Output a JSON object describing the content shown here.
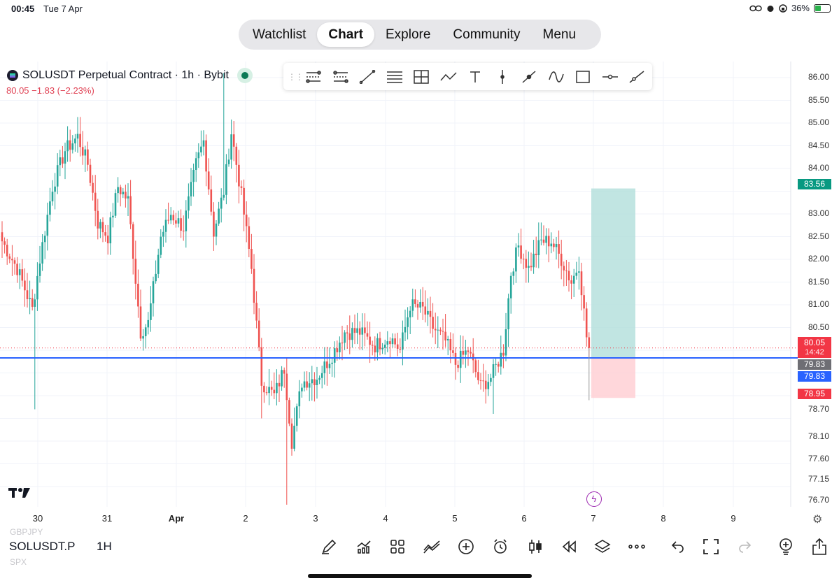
{
  "status": {
    "time": "00:45",
    "date": "Tue 7 Apr",
    "battery": "36%"
  },
  "nav": {
    "tabs": [
      "Watchlist",
      "Chart",
      "Explore",
      "Community",
      "Menu"
    ],
    "active": "Chart"
  },
  "symbol": {
    "title": "SOLUSDT Perpetual Contract · 1h · Bybit",
    "last": "80.05",
    "change": "−1.83 (−2.23%)"
  },
  "toolbar": {
    "tools": [
      "fib-retracement-icon",
      "parallel-channel-icon",
      "trend-line-icon",
      "horizontal-lines-icon",
      "crosshair-box-icon",
      "path-icon",
      "text-icon",
      "vertical-line-icon",
      "arrow-marker-icon",
      "curve-icon",
      "rectangle-icon",
      "horizontal-ray-icon",
      "ray-icon"
    ]
  },
  "price_axis": [
    "86.00",
    "85.50",
    "85.00",
    "84.50",
    "84.00",
    "83.00",
    "82.50",
    "82.00",
    "81.50",
    "81.00",
    "80.50",
    "78.70",
    "78.10",
    "77.60",
    "77.15",
    "76.70"
  ],
  "price_tags": {
    "target": "83.56",
    "current": "80.05",
    "countdown": "14:42",
    "entry_gray": "79.83",
    "entry_blue": "79.83",
    "stop": "78.95"
  },
  "x_axis": [
    "30",
    "31",
    "Apr",
    "2",
    "3",
    "4",
    "5",
    "6",
    "7",
    "8",
    "9"
  ],
  "bottom": {
    "ghost_top": "GBPJPY",
    "ghost_bottom": "SPX",
    "symbol": "SOLUSDT.P",
    "timeframe": "1H",
    "icons": [
      "draw-icon",
      "indicators-icon",
      "layouts-icon",
      "compare-icon",
      "add-icon",
      "alert-icon",
      "candles-icon",
      "replay-icon",
      "layers-icon",
      "more-icon",
      "undo-icon",
      "fullscreen-icon",
      "redo-icon",
      "ideas-icon",
      "share-icon"
    ]
  },
  "colors": {
    "up": "#26a69a",
    "down": "#ef5350",
    "entry_line": "#2962ff",
    "target_zone": "#b2dfdb",
    "stop_zone": "#ffcdd2"
  },
  "chart_data": {
    "type": "candlestick",
    "title": "SOLUSDT Perpetual Contract · 1h · Bybit",
    "ylim": [
      76.55,
      86.15
    ],
    "x": [
      "30",
      "31",
      "Apr",
      "2",
      "3",
      "4",
      "5",
      "6",
      "7",
      "8",
      "9"
    ],
    "key_prices": {
      "last": 80.05,
      "entry": 79.83,
      "target": 83.56,
      "stop": 78.95
    },
    "anchors": [
      {
        "t": 0,
        "p": 82.4
      },
      {
        "t": 6,
        "p": 81.8
      },
      {
        "t": 10,
        "p": 81.2
      },
      {
        "t": 12,
        "p": 80.9
      },
      {
        "t": 15,
        "p": 82.0
      },
      {
        "t": 20,
        "p": 83.6
      },
      {
        "t": 25,
        "p": 84.4
      },
      {
        "t": 30,
        "p": 84.7
      },
      {
        "t": 34,
        "p": 84.1
      },
      {
        "t": 38,
        "p": 82.8
      },
      {
        "t": 42,
        "p": 82.5
      },
      {
        "t": 46,
        "p": 83.6
      },
      {
        "t": 50,
        "p": 83.3
      },
      {
        "t": 55,
        "p": 80.4
      },
      {
        "t": 58,
        "p": 80.6
      },
      {
        "t": 63,
        "p": 82.5
      },
      {
        "t": 67,
        "p": 83.0
      },
      {
        "t": 72,
        "p": 82.7
      },
      {
        "t": 77,
        "p": 84.1
      },
      {
        "t": 80,
        "p": 84.6
      },
      {
        "t": 84,
        "p": 82.6
      },
      {
        "t": 88,
        "p": 83.5
      },
      {
        "t": 91,
        "p": 84.8
      },
      {
        "t": 95,
        "p": 83.4
      },
      {
        "t": 99,
        "p": 81.8
      },
      {
        "t": 103,
        "p": 79.3
      },
      {
        "t": 108,
        "p": 79.0
      },
      {
        "t": 112,
        "p": 79.6
      },
      {
        "t": 115,
        "p": 78.0
      },
      {
        "t": 119,
        "p": 79.3
      },
      {
        "t": 125,
        "p": 79.4
      },
      {
        "t": 131,
        "p": 79.9
      },
      {
        "t": 136,
        "p": 80.4
      },
      {
        "t": 142,
        "p": 80.4
      },
      {
        "t": 148,
        "p": 80.1
      },
      {
        "t": 154,
        "p": 80.3
      },
      {
        "t": 158,
        "p": 80.0
      },
      {
        "t": 162,
        "p": 81.0
      },
      {
        "t": 167,
        "p": 80.9
      },
      {
        "t": 171,
        "p": 80.5
      },
      {
        "t": 176,
        "p": 80.2
      },
      {
        "t": 180,
        "p": 79.7
      },
      {
        "t": 185,
        "p": 80.0
      },
      {
        "t": 190,
        "p": 79.2
      },
      {
        "t": 194,
        "p": 79.4
      },
      {
        "t": 199,
        "p": 80.0
      },
      {
        "t": 202,
        "p": 81.7
      },
      {
        "t": 205,
        "p": 82.3
      },
      {
        "t": 209,
        "p": 81.8
      },
      {
        "t": 214,
        "p": 82.4
      },
      {
        "t": 218,
        "p": 82.4
      },
      {
        "t": 222,
        "p": 82.0
      },
      {
        "t": 226,
        "p": 81.5
      },
      {
        "t": 229,
        "p": 81.9
      },
      {
        "t": 232,
        "p": 80.3
      },
      {
        "t": 233,
        "p": 80.05
      }
    ]
  }
}
